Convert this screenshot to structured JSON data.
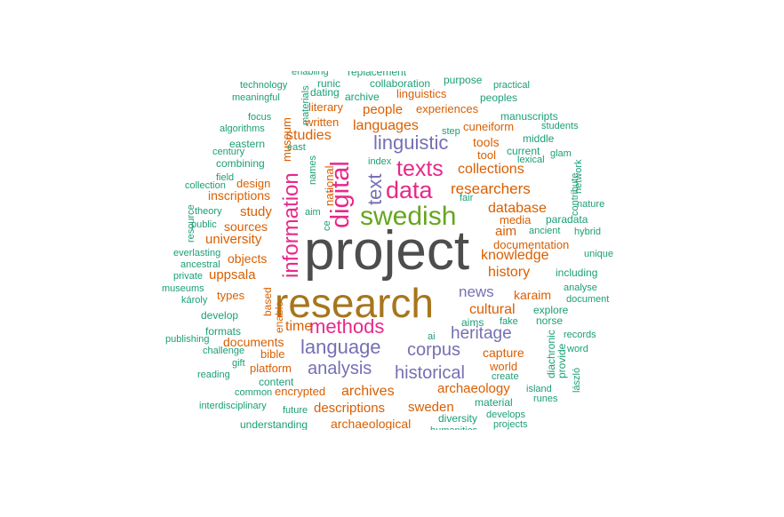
{
  "palette": {
    "g": "#1b9e77",
    "o": "#d95f02",
    "p": "#7570b3",
    "m": "#e7298a",
    "l": "#66a61e",
    "y": "#a6761d",
    "d": "#4d4d4d"
  },
  "words": [
    {
      "text": "project"
    },
    {
      "text": "research"
    },
    {
      "text": "swedish"
    },
    {
      "text": "digital"
    },
    {
      "text": "data"
    },
    {
      "text": "information"
    },
    {
      "text": "texts"
    },
    {
      "text": "linguistic"
    },
    {
      "text": "methods"
    },
    {
      "text": "language"
    },
    {
      "text": "historical"
    },
    {
      "text": "analysis"
    },
    {
      "text": "corpus"
    },
    {
      "text": "heritage"
    },
    {
      "text": "text"
    },
    {
      "text": "news"
    },
    {
      "text": "cultural"
    },
    {
      "text": "researchers"
    },
    {
      "text": "collections"
    },
    {
      "text": "database"
    },
    {
      "text": "knowledge"
    },
    {
      "text": "history"
    },
    {
      "text": "studies"
    },
    {
      "text": "languages"
    },
    {
      "text": "archives"
    },
    {
      "text": "descriptions"
    },
    {
      "text": "sweden"
    },
    {
      "text": "archaeology"
    },
    {
      "text": "time"
    },
    {
      "text": "university"
    },
    {
      "text": "people"
    },
    {
      "text": "aim"
    },
    {
      "text": "study"
    },
    {
      "text": "uppsala"
    },
    {
      "text": "documents"
    },
    {
      "text": "capture"
    },
    {
      "text": "tools"
    },
    {
      "text": "archaeological"
    },
    {
      "text": "objects"
    },
    {
      "text": "sources"
    },
    {
      "text": "platform"
    },
    {
      "text": "karaim"
    },
    {
      "text": "encrypted"
    },
    {
      "text": "inscriptions"
    },
    {
      "text": "documentation"
    },
    {
      "text": "cuneiform"
    },
    {
      "text": "national"
    },
    {
      "text": "media"
    },
    {
      "text": "design"
    },
    {
      "text": "tool"
    },
    {
      "text": "linguistics"
    },
    {
      "text": "experiences"
    },
    {
      "text": "world"
    },
    {
      "text": "types"
    },
    {
      "text": "bible"
    },
    {
      "text": "written"
    },
    {
      "text": "literary"
    },
    {
      "text": "museum"
    },
    {
      "text": "paradata"
    },
    {
      "text": "manuscripts"
    },
    {
      "text": "replacement"
    },
    {
      "text": "collaboration"
    },
    {
      "text": "purpose"
    },
    {
      "text": "runic"
    },
    {
      "text": "dating"
    },
    {
      "text": "archive"
    },
    {
      "text": "peoples"
    },
    {
      "text": "practical"
    },
    {
      "text": "technology"
    },
    {
      "text": "meaningful"
    },
    {
      "text": "enabling"
    },
    {
      "text": "materials"
    },
    {
      "text": "focus"
    },
    {
      "text": "algorithms"
    },
    {
      "text": "century"
    },
    {
      "text": "eastern"
    },
    {
      "text": "combining"
    },
    {
      "text": "field"
    },
    {
      "text": "collection"
    },
    {
      "text": "theory"
    },
    {
      "text": "resource"
    },
    {
      "text": "public"
    },
    {
      "text": "everlasting"
    },
    {
      "text": "ancestral"
    },
    {
      "text": "private"
    },
    {
      "text": "museums"
    },
    {
      "text": "károly"
    },
    {
      "text": "develop"
    },
    {
      "text": "formats"
    },
    {
      "text": "publishing"
    },
    {
      "text": "challenge"
    },
    {
      "text": "gift"
    },
    {
      "text": "reading"
    },
    {
      "text": "common"
    },
    {
      "text": "interdisciplinary"
    },
    {
      "text": "future"
    },
    {
      "text": "understanding"
    },
    {
      "text": "content"
    },
    {
      "text": "based"
    },
    {
      "text": "enable"
    },
    {
      "text": "east"
    },
    {
      "text": "names"
    },
    {
      "text": "aim"
    },
    {
      "text": "ce"
    },
    {
      "text": "index"
    },
    {
      "text": "fair"
    },
    {
      "text": "step"
    },
    {
      "text": "current"
    },
    {
      "text": "lexical"
    },
    {
      "text": "middle"
    },
    {
      "text": "students"
    },
    {
      "text": "glam"
    },
    {
      "text": "contribute"
    },
    {
      "text": "network"
    },
    {
      "text": "nature"
    },
    {
      "text": "ancient"
    },
    {
      "text": "hybrid"
    },
    {
      "text": "unique"
    },
    {
      "text": "including"
    },
    {
      "text": "analyse"
    },
    {
      "text": "document"
    },
    {
      "text": "explore"
    },
    {
      "text": "records"
    },
    {
      "text": "word"
    },
    {
      "text": "norse"
    },
    {
      "text": "diachronic"
    },
    {
      "text": "provide"
    },
    {
      "text": "lászló"
    },
    {
      "text": "aims"
    },
    {
      "text": "fake"
    },
    {
      "text": "ai"
    },
    {
      "text": "create"
    },
    {
      "text": "island"
    },
    {
      "text": "runes"
    },
    {
      "text": "material"
    },
    {
      "text": "diversity"
    },
    {
      "text": "develops"
    },
    {
      "text": "projects"
    },
    {
      "text": "humanities"
    }
  ]
}
